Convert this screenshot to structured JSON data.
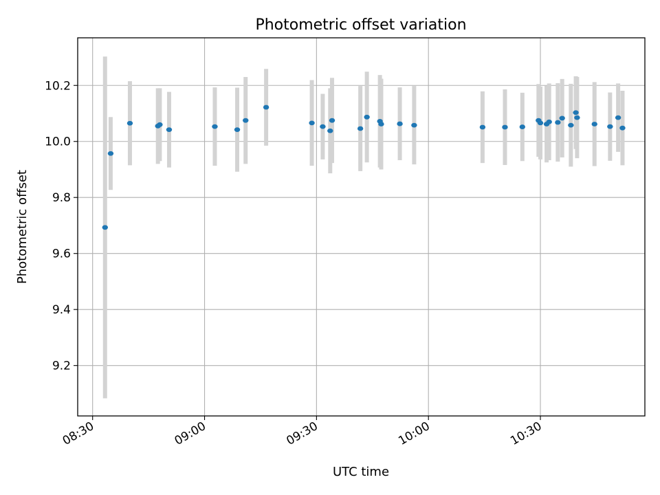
{
  "chart_data": {
    "type": "scatter",
    "title": "Photometric offset variation",
    "xlabel": "UTC time",
    "ylabel": "Photometric offset",
    "x_unit": "minutes",
    "xlim": [
      "08:26",
      "10:58"
    ],
    "ylim": [
      9.02,
      10.37
    ],
    "x_ticks": [
      "08:30",
      "09:00",
      "09:30",
      "10:00",
      "10:30"
    ],
    "y_ticks": [
      9.2,
      9.4,
      9.6,
      9.8,
      10.0,
      10.2
    ],
    "grid": true,
    "colors": {
      "point": "#1f77b4",
      "errorbar": "#d3d3d3",
      "grid": "#b0b0b0"
    },
    "series": [
      {
        "points": [
          {
            "t": "08:33:20",
            "y": 9.693,
            "err": 0.61
          },
          {
            "t": "08:34:50",
            "y": 9.957,
            "err": 0.13
          },
          {
            "t": "08:40:00",
            "y": 10.065,
            "err": 0.15
          },
          {
            "t": "08:47:30",
            "y": 10.055,
            "err": 0.135
          },
          {
            "t": "08:48:00",
            "y": 10.06,
            "err": 0.13
          },
          {
            "t": "08:50:30",
            "y": 10.042,
            "err": 0.135
          },
          {
            "t": "09:02:45",
            "y": 10.053,
            "err": 0.14
          },
          {
            "t": "09:08:45",
            "y": 10.042,
            "err": 0.15
          },
          {
            "t": "09:11:00",
            "y": 10.075,
            "err": 0.155
          },
          {
            "t": "09:16:30",
            "y": 10.122,
            "err": 0.137
          },
          {
            "t": "09:28:45",
            "y": 10.066,
            "err": 0.153
          },
          {
            "t": "09:31:40",
            "y": 10.053,
            "err": 0.117
          },
          {
            "t": "09:33:40",
            "y": 10.038,
            "err": 0.152
          },
          {
            "t": "09:34:10",
            "y": 10.075,
            "err": 0.152
          },
          {
            "t": "09:41:45",
            "y": 10.046,
            "err": 0.152
          },
          {
            "t": "09:43:30",
            "y": 10.087,
            "err": 0.162
          },
          {
            "t": "09:47:00",
            "y": 10.072,
            "err": 0.165
          },
          {
            "t": "09:47:20",
            "y": 10.062,
            "err": 0.162
          },
          {
            "t": "09:52:20",
            "y": 10.063,
            "err": 0.13
          },
          {
            "t": "09:56:10",
            "y": 10.058,
            "err": 0.14
          },
          {
            "t": "10:14:30",
            "y": 10.051,
            "err": 0.128
          },
          {
            "t": "10:20:30",
            "y": 10.051,
            "err": 0.135
          },
          {
            "t": "10:25:10",
            "y": 10.052,
            "err": 0.122
          },
          {
            "t": "10:29:30",
            "y": 10.075,
            "err": 0.13
          },
          {
            "t": "10:30:00",
            "y": 10.066,
            "err": 0.13
          },
          {
            "t": "10:31:40",
            "y": 10.062,
            "err": 0.137
          },
          {
            "t": "10:32:20",
            "y": 10.07,
            "err": 0.137
          },
          {
            "t": "10:34:40",
            "y": 10.068,
            "err": 0.14
          },
          {
            "t": "10:35:50",
            "y": 10.083,
            "err": 0.14
          },
          {
            "t": "10:38:10",
            "y": 10.058,
            "err": 0.148
          },
          {
            "t": "10:39:30",
            "y": 10.103,
            "err": 0.13
          },
          {
            "t": "10:39:50",
            "y": 10.085,
            "err": 0.145
          },
          {
            "t": "10:44:30",
            "y": 10.062,
            "err": 0.15
          },
          {
            "t": "10:48:40",
            "y": 10.053,
            "err": 0.122
          },
          {
            "t": "10:50:50",
            "y": 10.085,
            "err": 0.122
          },
          {
            "t": "10:52:00",
            "y": 10.048,
            "err": 0.133
          }
        ]
      }
    ]
  }
}
